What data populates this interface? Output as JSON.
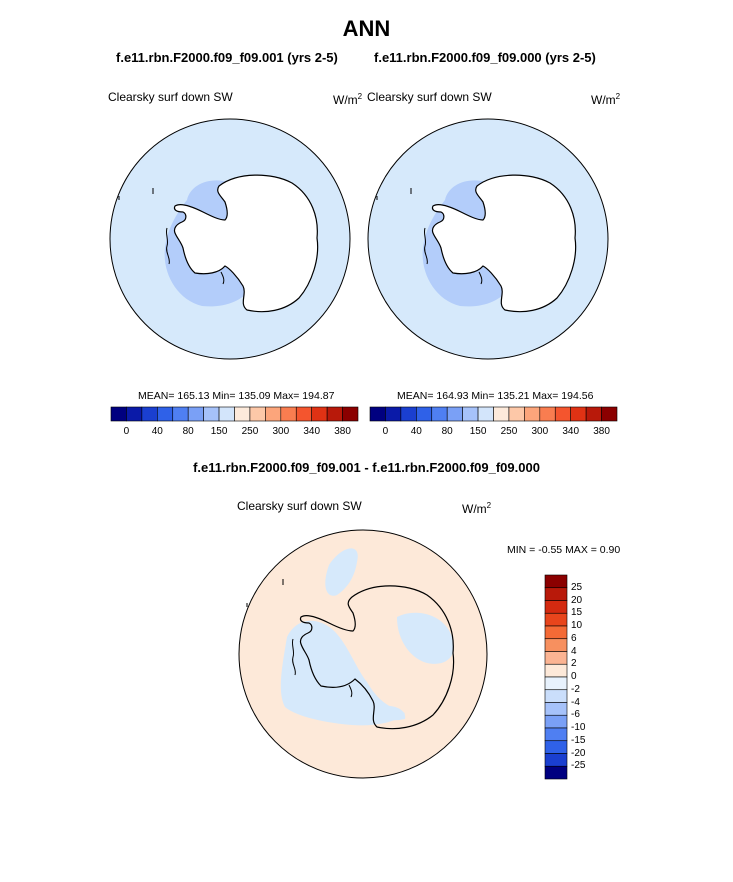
{
  "title": "ANN",
  "panels": [
    {
      "case": "f.e11.rbn.F2000.f09_f09.001 (yrs 2-5)",
      "variable": "Clearsky surf down SW",
      "units_base": "W/m",
      "units_exp": "2",
      "stats": {
        "mean": "165.13",
        "min": "135.09",
        "max": "194.87"
      },
      "stats_text": "MEAN= 165.13  Min= 135.09  Max= 194.87",
      "ocean_color": "#d6e9fb",
      "inner_color": "#b3cdfa",
      "land_color": "#ffffff"
    },
    {
      "case": "f.e11.rbn.F2000.f09_f09.000 (yrs 2-5)",
      "variable": "Clearsky surf down SW",
      "units_base": "W/m",
      "units_exp": "2",
      "stats": {
        "mean": "164.93",
        "min": "135.21",
        "max": "194.56"
      },
      "stats_text": "MEAN= 164.93  Min= 135.21  Max= 194.56",
      "ocean_color": "#d6e9fb",
      "inner_color": "#b3cdfa",
      "land_color": "#ffffff"
    }
  ],
  "abs_colorbar": {
    "colors": [
      "#000080",
      "#0a1aa8",
      "#1a3fd0",
      "#2f61e8",
      "#4f7ff2",
      "#7aa0f6",
      "#a6c2fa",
      "#d3e5fb",
      "#fdeadb",
      "#fdc8a8",
      "#fca57b",
      "#f97d50",
      "#f4552e",
      "#e03214",
      "#b8190a",
      "#8b0000"
    ],
    "labels": [
      "0",
      "40",
      "80",
      "150",
      "250",
      "300",
      "340",
      "380"
    ]
  },
  "diff": {
    "title": "f.e11.rbn.F2000.f09_f09.001 - f.e11.rbn.F2000.f09_f09.000",
    "variable": "Clearsky surf down SW",
    "units_base": "W/m",
    "units_exp": "2",
    "minmax_text": "MIN =  -0.55 MAX =   0.90",
    "min": "-0.55",
    "max": "0.90",
    "ocean_color": "#fde9d9",
    "patch_color": "#d6e9fb"
  },
  "diff_colorbar": {
    "colors": [
      "#8b0000",
      "#b8190a",
      "#d42a10",
      "#e8451c",
      "#f46a36",
      "#f7905f",
      "#fbb493",
      "#fde9d9",
      "#e8f2fd",
      "#cadefb",
      "#a6c2fa",
      "#7aa0f6",
      "#4f7ff2",
      "#2f61e8",
      "#1a3fd0",
      "#000080"
    ],
    "labels": [
      "25",
      "20",
      "15",
      "10",
      "6",
      "4",
      "2",
      "0",
      "-2",
      "-4",
      "-6",
      "-10",
      "-15",
      "-20",
      "-25"
    ]
  }
}
